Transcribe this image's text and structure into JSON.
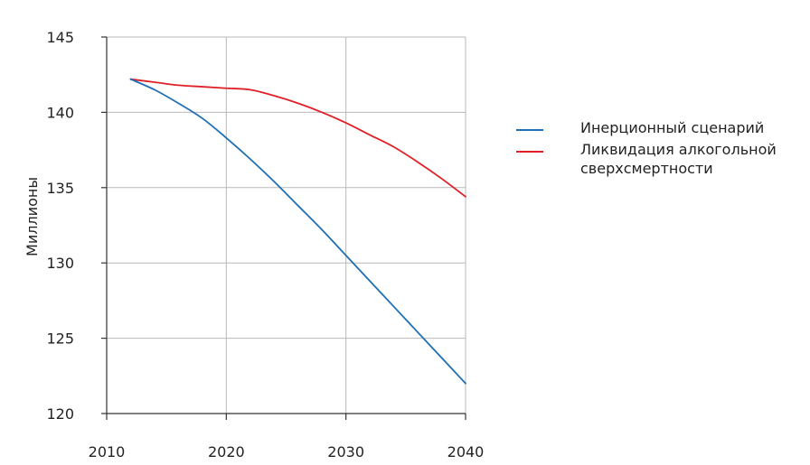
{
  "chart_data": {
    "type": "line",
    "title": "",
    "xlabel": "",
    "ylabel": "Миллионы",
    "xlim": [
      2010,
      2040
    ],
    "ylim": [
      120,
      145
    ],
    "x_ticks": [
      2010,
      2020,
      2030,
      2040
    ],
    "y_ticks": [
      120,
      125,
      130,
      135,
      140,
      145
    ],
    "grid": true,
    "legend_position": "right",
    "series": [
      {
        "name": "Инерционный сценарий",
        "color": "#1f6fb4",
        "x": [
          2012,
          2014,
          2016,
          2018,
          2020,
          2022,
          2024,
          2026,
          2028,
          2030,
          2032,
          2034,
          2036,
          2038,
          2040
        ],
        "y": [
          142.2,
          141.5,
          140.6,
          139.6,
          138.3,
          136.9,
          135.4,
          133.8,
          132.2,
          130.5,
          128.8,
          127.1,
          125.4,
          123.7,
          122.0
        ]
      },
      {
        "name": "Ликвидация алкогольной сверхсмертности",
        "color": "#e02028",
        "x": [
          2012,
          2014,
          2016,
          2018,
          2020,
          2022,
          2024,
          2026,
          2028,
          2030,
          2032,
          2034,
          2036,
          2038,
          2040
        ],
        "y": [
          142.2,
          142.0,
          141.8,
          141.7,
          141.6,
          141.5,
          141.1,
          140.6,
          140.0,
          139.3,
          138.5,
          137.7,
          136.7,
          135.6,
          134.4
        ]
      }
    ]
  }
}
